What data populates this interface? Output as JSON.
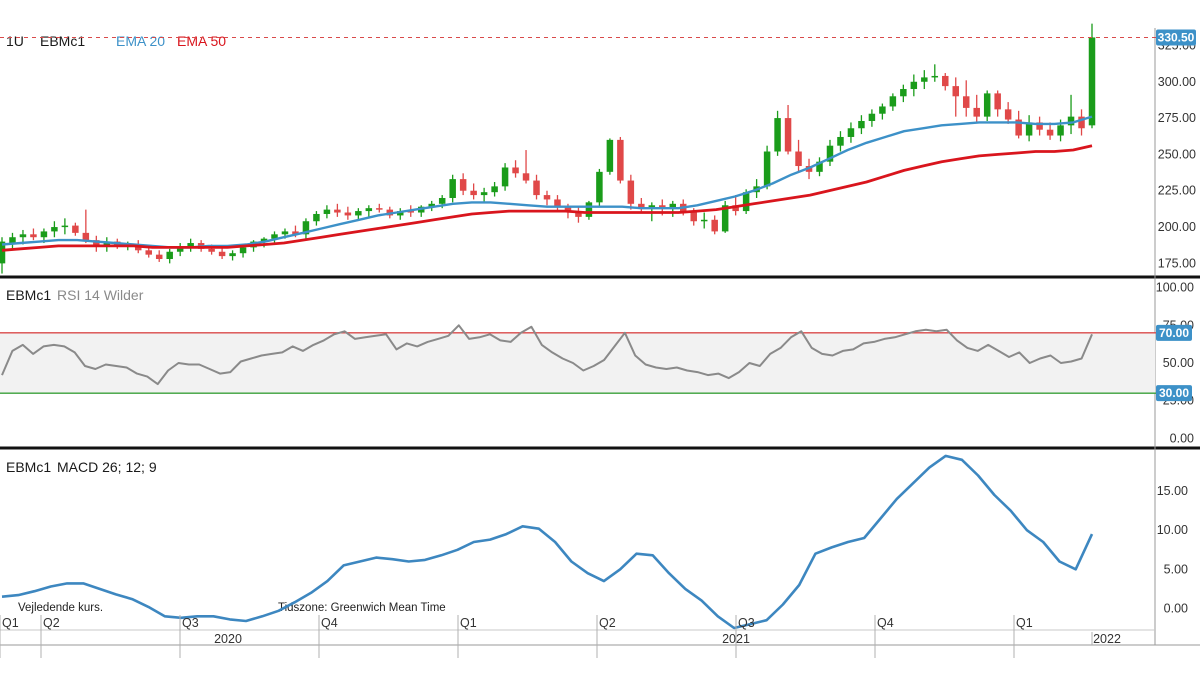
{
  "colors": {
    "up": "#1a9c1a",
    "down": "#e04848",
    "ema20": "#3d91c8",
    "ema50": "#d9151d",
    "rsi": "#8a8a8a",
    "macd": "#3d87c0",
    "rsi_upper": "#d94a4a",
    "rsi_lower": "#3aa03a",
    "rsi_band": "#f2f2f2",
    "badge": "#3d91c8",
    "divider": "#111111"
  },
  "header": {
    "interval": "1U",
    "symbol": "EBMc1",
    "ema20_label": "EMA 20",
    "ema50_label": "EMA 50"
  },
  "rsi_header": {
    "symbol": "EBMc1",
    "indicator": "RSI 14 Wilder"
  },
  "macd_header": {
    "symbol": "EBMc1",
    "indicator": "MACD 26; 12; 9"
  },
  "footer": {
    "note_left": "Vejledende kurs.",
    "note_right": "Tidszone: Greenwich Mean Time",
    "quarters": [
      "Q1",
      "Q2",
      "Q3",
      "Q4",
      "Q1",
      "Q2",
      "Q3",
      "Q4",
      "Q1"
    ],
    "years": [
      "2020",
      "2021",
      "2022"
    ]
  },
  "chart_data": [
    {
      "type": "candlestick",
      "title": "EBMc1",
      "interval": "1U",
      "ylim": [
        167,
        337
      ],
      "y_ticks": [
        "175.00",
        "200.00",
        "225.00",
        "250.00",
        "275.00",
        "300.00",
        "325.00"
      ],
      "last_price": "330.50",
      "grid": false,
      "ohlc": [
        [
          175,
          193,
          168,
          190
        ],
        [
          189,
          196,
          184,
          193
        ],
        [
          193,
          198,
          188,
          195
        ],
        [
          195,
          199,
          191,
          193
        ],
        [
          193,
          199,
          189,
          197
        ],
        [
          197,
          204,
          193,
          200
        ],
        [
          200,
          206,
          195,
          201
        ],
        [
          201,
          203,
          194,
          196
        ],
        [
          196,
          212,
          189,
          191
        ],
        [
          191,
          194,
          183,
          187
        ],
        [
          187,
          193,
          183,
          190
        ],
        [
          190,
          192,
          185,
          187
        ],
        [
          187,
          190,
          184,
          188
        ],
        [
          188,
          191,
          182,
          184
        ],
        [
          184,
          187,
          179,
          181
        ],
        [
          181,
          184,
          176,
          178
        ],
        [
          178,
          185,
          175,
          183
        ],
        [
          183,
          189,
          180,
          186
        ],
        [
          186,
          192,
          183,
          189
        ],
        [
          189,
          191,
          183,
          185
        ],
        [
          185,
          188,
          181,
          183
        ],
        [
          183,
          186,
          178,
          180
        ],
        [
          180,
          184,
          177,
          182
        ],
        [
          182,
          188,
          179,
          186
        ],
        [
          186,
          191,
          183,
          190
        ],
        [
          190,
          193,
          186,
          192
        ],
        [
          192,
          197,
          189,
          195
        ],
        [
          195,
          199,
          192,
          197
        ],
        [
          197,
          201,
          193,
          195
        ],
        [
          195,
          206,
          192,
          204
        ],
        [
          204,
          211,
          201,
          209
        ],
        [
          209,
          215,
          206,
          212
        ],
        [
          212,
          216,
          207,
          210
        ],
        [
          210,
          214,
          205,
          208
        ],
        [
          208,
          213,
          205,
          211
        ],
        [
          211,
          215,
          207,
          213
        ],
        [
          213,
          216,
          210,
          212
        ],
        [
          212,
          214,
          206,
          208
        ],
        [
          208,
          213,
          205,
          211
        ],
        [
          211,
          215,
          207,
          210
        ],
        [
          210,
          215,
          207,
          214
        ],
        [
          214,
          218,
          211,
          216
        ],
        [
          216,
          222,
          213,
          220
        ],
        [
          220,
          236,
          217,
          233
        ],
        [
          233,
          237,
          222,
          225
        ],
        [
          225,
          230,
          219,
          222
        ],
        [
          222,
          227,
          217,
          224
        ],
        [
          224,
          231,
          221,
          228
        ],
        [
          228,
          244,
          225,
          241
        ],
        [
          241,
          246,
          234,
          237
        ],
        [
          237,
          253,
          230,
          232
        ],
        [
          232,
          236,
          219,
          222
        ],
        [
          222,
          225,
          215,
          219
        ],
        [
          219,
          222,
          211,
          214
        ],
        [
          214,
          216,
          206,
          210
        ],
        [
          210,
          214,
          203,
          207
        ],
        [
          207,
          218,
          205,
          217
        ],
        [
          217,
          240,
          214,
          238
        ],
        [
          238,
          261,
          236,
          260
        ],
        [
          260,
          262,
          230,
          232
        ],
        [
          232,
          236,
          212,
          216
        ],
        [
          216,
          220,
          210,
          213
        ],
        [
          213,
          217,
          204,
          215
        ],
        [
          215,
          219,
          208,
          213
        ],
        [
          213,
          218,
          207,
          216
        ],
        [
          216,
          219,
          208,
          210
        ],
        [
          210,
          213,
          201,
          204
        ],
        [
          204,
          210,
          199,
          205
        ],
        [
          205,
          208,
          195,
          197
        ],
        [
          197,
          218,
          196,
          215
        ],
        [
          215,
          222,
          208,
          211
        ],
        [
          211,
          226,
          209,
          224
        ],
        [
          224,
          233,
          220,
          228
        ],
        [
          228,
          256,
          226,
          252
        ],
        [
          252,
          280,
          249,
          275
        ],
        [
          275,
          284,
          250,
          252
        ],
        [
          252,
          260,
          238,
          242
        ],
        [
          242,
          247,
          233,
          238
        ],
        [
          238,
          248,
          235,
          245
        ],
        [
          245,
          260,
          242,
          256
        ],
        [
          256,
          266,
          252,
          262
        ],
        [
          262,
          272,
          258,
          268
        ],
        [
          268,
          277,
          264,
          273
        ],
        [
          273,
          281,
          269,
          278
        ],
        [
          278,
          285,
          274,
          283
        ],
        [
          283,
          292,
          280,
          290
        ],
        [
          290,
          298,
          286,
          295
        ],
        [
          295,
          305,
          290,
          300
        ],
        [
          300,
          308,
          295,
          303
        ],
        [
          303,
          312,
          300,
          304
        ],
        [
          304,
          306,
          294,
          297
        ],
        [
          297,
          303,
          276,
          290
        ],
        [
          290,
          301,
          276,
          282
        ],
        [
          282,
          291,
          272,
          276
        ],
        [
          276,
          294,
          273,
          292
        ],
        [
          292,
          294,
          276,
          281
        ],
        [
          281,
          286,
          271,
          274
        ],
        [
          274,
          280,
          261,
          263
        ],
        [
          263,
          277,
          259,
          272
        ],
        [
          272,
          276,
          263,
          267
        ],
        [
          267,
          272,
          260,
          263
        ],
        [
          263,
          274,
          259,
          270
        ],
        [
          270,
          291,
          264,
          276
        ],
        [
          276,
          281,
          263,
          268
        ],
        [
          270,
          340,
          268,
          330.5
        ]
      ],
      "series": [
        {
          "name": "EMA 20",
          "values": [
            188,
            189,
            190,
            191,
            191,
            190,
            189,
            188,
            187,
            186,
            186,
            187,
            187,
            188,
            190,
            193,
            196,
            199,
            202,
            205,
            208,
            210,
            212,
            214,
            216,
            217,
            217,
            216,
            215,
            214,
            214,
            214,
            214,
            214,
            213,
            213,
            213,
            215,
            218,
            221,
            225,
            230,
            236,
            241,
            247,
            253,
            258,
            262,
            266,
            268,
            270,
            271,
            272,
            272,
            272,
            271,
            271,
            272,
            276
          ]
        },
        {
          "name": "EMA 50",
          "values": [
            184,
            185,
            186,
            187,
            187,
            187,
            187,
            187,
            186,
            186,
            186,
            186,
            186,
            187,
            188,
            189,
            191,
            193,
            195,
            197,
            199,
            201,
            203,
            205,
            207,
            209,
            210,
            211,
            211,
            211,
            211,
            210,
            210,
            210,
            210,
            210,
            210,
            211,
            212,
            214,
            216,
            218,
            220,
            222,
            225,
            228,
            231,
            235,
            239,
            242,
            245,
            247,
            249,
            250,
            251,
            252,
            252,
            253,
            256
          ]
        }
      ]
    },
    {
      "type": "line",
      "title": "RSI 14 Wilder",
      "ylim": [
        -5,
        105
      ],
      "y_ticks": [
        "0.00",
        "25.00",
        "50.00",
        "75.00",
        "100.00"
      ],
      "levels": [
        {
          "value": 70,
          "label": "70.00"
        },
        {
          "value": 30,
          "label": "30.00"
        }
      ],
      "series": [
        {
          "name": "RSI 14 Wilder",
          "values": [
            42,
            58,
            62,
            56,
            61,
            62,
            61,
            57,
            48,
            46,
            49,
            48,
            47,
            43,
            41,
            36,
            45,
            50,
            49,
            49,
            46,
            43,
            44,
            51,
            53,
            55,
            56,
            57,
            61,
            58,
            62,
            65,
            69,
            71,
            66,
            67,
            68,
            69,
            59,
            63,
            61,
            64,
            66,
            68,
            75,
            66,
            67,
            69,
            65,
            64,
            70,
            74,
            62,
            57,
            53,
            50,
            45,
            48,
            52,
            61,
            70,
            55,
            49,
            47,
            46,
            47,
            45,
            44,
            42,
            43,
            40,
            44,
            50,
            48,
            56,
            60,
            67,
            71,
            60,
            56,
            55,
            58,
            59,
            63,
            64,
            66,
            67,
            69,
            71,
            72,
            71,
            72,
            65,
            60,
            58,
            62,
            58,
            54,
            57,
            50,
            53,
            55,
            50,
            51,
            53,
            69
          ]
        }
      ]
    },
    {
      "type": "line",
      "title": "MACD 26; 12; 9",
      "ylim": [
        -2.5,
        20
      ],
      "y_ticks": [
        "0.00",
        "5.00",
        "10.00",
        "15.00"
      ],
      "series": [
        {
          "name": "MACD 26; 12; 9",
          "values": [
            1.5,
            1.7,
            2.2,
            2.8,
            3.2,
            3.2,
            2.5,
            1.8,
            1.2,
            0.2,
            -1.0,
            -1.2,
            -1.0,
            -1.0,
            -1.4,
            -1.6,
            -1.0,
            -0.3,
            0.8,
            2.0,
            3.5,
            5.5,
            6.0,
            6.5,
            6.3,
            6.0,
            6.2,
            6.8,
            7.5,
            8.5,
            8.8,
            9.5,
            10.5,
            10.2,
            8.5,
            6.0,
            4.5,
            3.5,
            5.0,
            7.0,
            6.8,
            4.5,
            2.5,
            1.0,
            -1.0,
            -2.5,
            -2.0,
            -1.5,
            0.5,
            3.0,
            7.0,
            7.8,
            8.5,
            9.0,
            11.5,
            14.0,
            16.0,
            18.0,
            19.5,
            19.0,
            17.0,
            14.5,
            12.5,
            10.0,
            8.5,
            6.0,
            5.0,
            9.5
          ]
        }
      ]
    }
  ]
}
